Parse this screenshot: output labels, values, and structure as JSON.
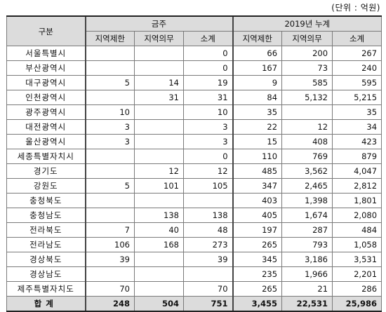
{
  "unit_label": "(단위 : 억원)",
  "header": {
    "row_label": "구분",
    "group1": "금주",
    "group2": "2019년 누계",
    "sub": [
      "지역제한",
      "지역의무",
      "소계",
      "지역제한",
      "지역의무",
      "소계"
    ]
  },
  "rows": [
    {
      "name": "서울특별시",
      "v": [
        "",
        "",
        "0",
        "66",
        "200",
        "267"
      ]
    },
    {
      "name": "부산광역시",
      "v": [
        "",
        "",
        "0",
        "167",
        "73",
        "240"
      ]
    },
    {
      "name": "대구광역시",
      "v": [
        "5",
        "14",
        "19",
        "9",
        "585",
        "595"
      ]
    },
    {
      "name": "인천광역시",
      "v": [
        "",
        "31",
        "31",
        "84",
        "5,132",
        "5,215"
      ]
    },
    {
      "name": "광주광역시",
      "v": [
        "10",
        "",
        "10",
        "35",
        "",
        "35"
      ]
    },
    {
      "name": "대전광역시",
      "v": [
        "3",
        "",
        "3",
        "22",
        "12",
        "34"
      ]
    },
    {
      "name": "울산광역시",
      "v": [
        "3",
        "",
        "3",
        "15",
        "408",
        "423"
      ]
    },
    {
      "name": "세종특별자치시",
      "v": [
        "",
        "",
        "0",
        "110",
        "769",
        "879"
      ]
    },
    {
      "name": "경기도",
      "v": [
        "",
        "12",
        "12",
        "485",
        "3,562",
        "4,047"
      ]
    },
    {
      "name": "강원도",
      "v": [
        "5",
        "101",
        "105",
        "347",
        "2,465",
        "2,812"
      ]
    },
    {
      "name": "충청북도",
      "v": [
        "",
        "",
        "",
        "403",
        "1,398",
        "1,801"
      ]
    },
    {
      "name": "충청남도",
      "v": [
        "",
        "138",
        "138",
        "405",
        "1,674",
        "2,080"
      ]
    },
    {
      "name": "전라북도",
      "v": [
        "7",
        "40",
        "48",
        "197",
        "287",
        "484"
      ]
    },
    {
      "name": "전라남도",
      "v": [
        "106",
        "168",
        "273",
        "265",
        "793",
        "1,058"
      ]
    },
    {
      "name": "경상북도",
      "v": [
        "39",
        "",
        "39",
        "345",
        "3,186",
        "3,531"
      ]
    },
    {
      "name": "경상남도",
      "v": [
        "",
        "",
        "",
        "235",
        "1,966",
        "2,201"
      ]
    },
    {
      "name": "제주특별자치도",
      "v": [
        "70",
        "",
        "70",
        "265",
        "21",
        "286"
      ]
    }
  ],
  "total": {
    "name": "합계",
    "v": [
      "248",
      "504",
      "751",
      "3,455",
      "22,531",
      "25,986"
    ]
  }
}
